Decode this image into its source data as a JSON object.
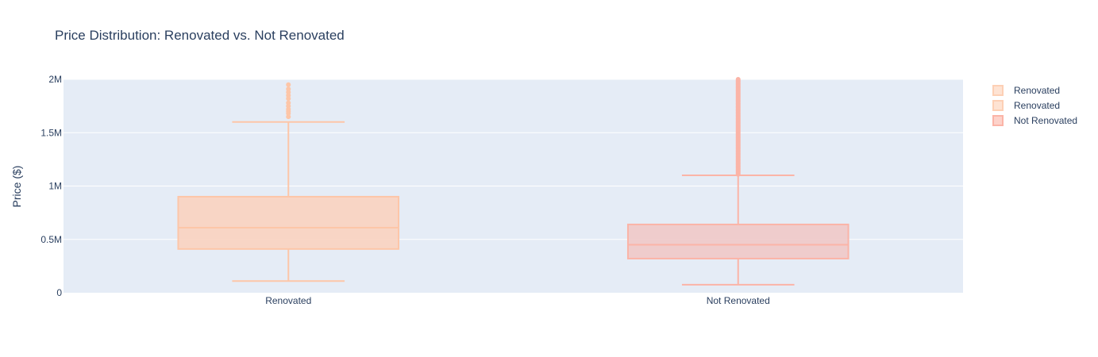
{
  "chart_data": {
    "type": "box",
    "title": "Price Distribution: Renovated vs. Not Renovated",
    "xlabel": "",
    "ylabel": "Price ($)",
    "ylim": [
      0,
      2000000
    ],
    "y_ticks": [
      {
        "value": 0,
        "label": "0"
      },
      {
        "value": 500000,
        "label": "0.5M"
      },
      {
        "value": 1000000,
        "label": "1M"
      },
      {
        "value": 1500000,
        "label": "1.5M"
      },
      {
        "value": 2000000,
        "label": "2M"
      }
    ],
    "categories": [
      "Renovated",
      "Not Renovated"
    ],
    "grid": true,
    "legend_position": "top-right",
    "legend": [
      {
        "name": "Renovated",
        "color": "#fdd0b5"
      },
      {
        "name": "Renovated",
        "color": "#fdd0b5"
      },
      {
        "name": "Not Renovated",
        "color": "#fbb4a7"
      }
    ],
    "series": [
      {
        "name": "Renovated",
        "category": "Renovated",
        "color": "#fdc6a8",
        "fill": "#f9d3c0",
        "lower_whisker": 110000,
        "q1": 410000,
        "median": 610000,
        "q3": 900000,
        "upper_whisker": 1600000,
        "outliers": [
          1650000,
          1680000,
          1700000,
          1720000,
          1750000,
          1780000,
          1820000,
          1850000,
          1880000,
          1910000,
          1950000
        ]
      },
      {
        "name": "Not Renovated",
        "category": "Not Renovated",
        "color": "#fbb4a7",
        "fill": "#f0c9c8",
        "lower_whisker": 75000,
        "q1": 320000,
        "median": 450000,
        "q3": 640000,
        "upper_whisker": 1100000,
        "outliers_range": [
          1110000,
          2000000
        ]
      }
    ]
  }
}
